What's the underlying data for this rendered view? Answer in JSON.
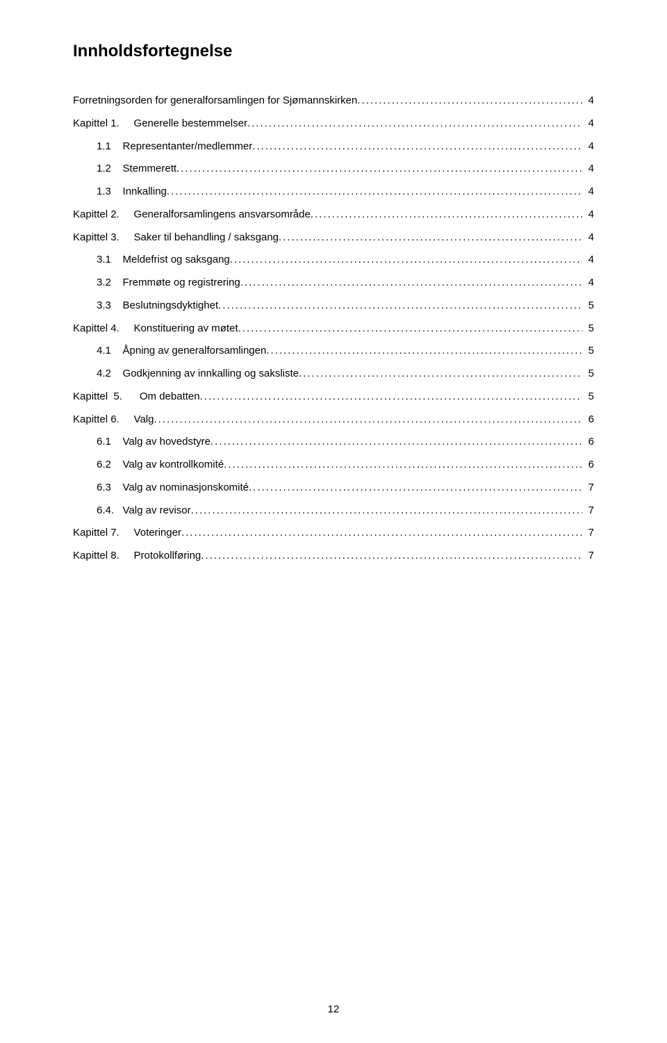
{
  "title": "Innholdsfortegnelse",
  "toc": [
    {
      "label": "Forretningsorden for generalforsamlingen for Sjømannskirken",
      "page": "4",
      "indent": 0
    },
    {
      "label": "Kapittel 1.     Generelle bestemmelser",
      "page": "4",
      "indent": 0
    },
    {
      "label": "1.1    Representanter/medlemmer",
      "page": "4",
      "indent": 1
    },
    {
      "label": "1.2    Stemmerett",
      "page": "4",
      "indent": 1
    },
    {
      "label": "1.3    Innkalling",
      "page": "4",
      "indent": 1
    },
    {
      "label": "Kapittel 2.     Generalforsamlingens ansvarsområde",
      "page": "4",
      "indent": 0
    },
    {
      "label": "Kapittel 3.     Saker til behandling / saksgang",
      "page": "4",
      "indent": 0
    },
    {
      "label": "3.1    Meldefrist og saksgang",
      "page": "4",
      "indent": 1
    },
    {
      "label": "3.2    Fremmøte og registrering",
      "page": "4",
      "indent": 1
    },
    {
      "label": "3.3    Beslutningsdyktighet",
      "page": "5",
      "indent": 1
    },
    {
      "label": "Kapittel 4.     Konstituering av møtet",
      "page": "5",
      "indent": 0
    },
    {
      "label": "4.1    Åpning av generalforsamlingen",
      "page": "5",
      "indent": 1
    },
    {
      "label": "4.2    Godkjenning av innkalling og saksliste",
      "page": "5",
      "indent": 1
    },
    {
      "label": "Kapittel  5.      Om debatten",
      "page": "5",
      "indent": 0
    },
    {
      "label": "Kapittel 6.     Valg",
      "page": "6",
      "indent": 0
    },
    {
      "label": "6.1    Valg av hovedstyre",
      "page": "6",
      "indent": 1
    },
    {
      "label": "6.2    Valg av kontrollkomité",
      "page": "6",
      "indent": 1
    },
    {
      "label": "6.3    Valg av nominasjonskomité",
      "page": "7",
      "indent": 1
    },
    {
      "label": "6.4.   Valg av revisor",
      "page": "7",
      "indent": 1
    },
    {
      "label": "Kapittel 7.     Voteringer",
      "page": "7",
      "indent": 0
    },
    {
      "label": "Kapittel 8.     Protokollføring",
      "page": "7",
      "indent": 0
    }
  ],
  "page_number": "12"
}
